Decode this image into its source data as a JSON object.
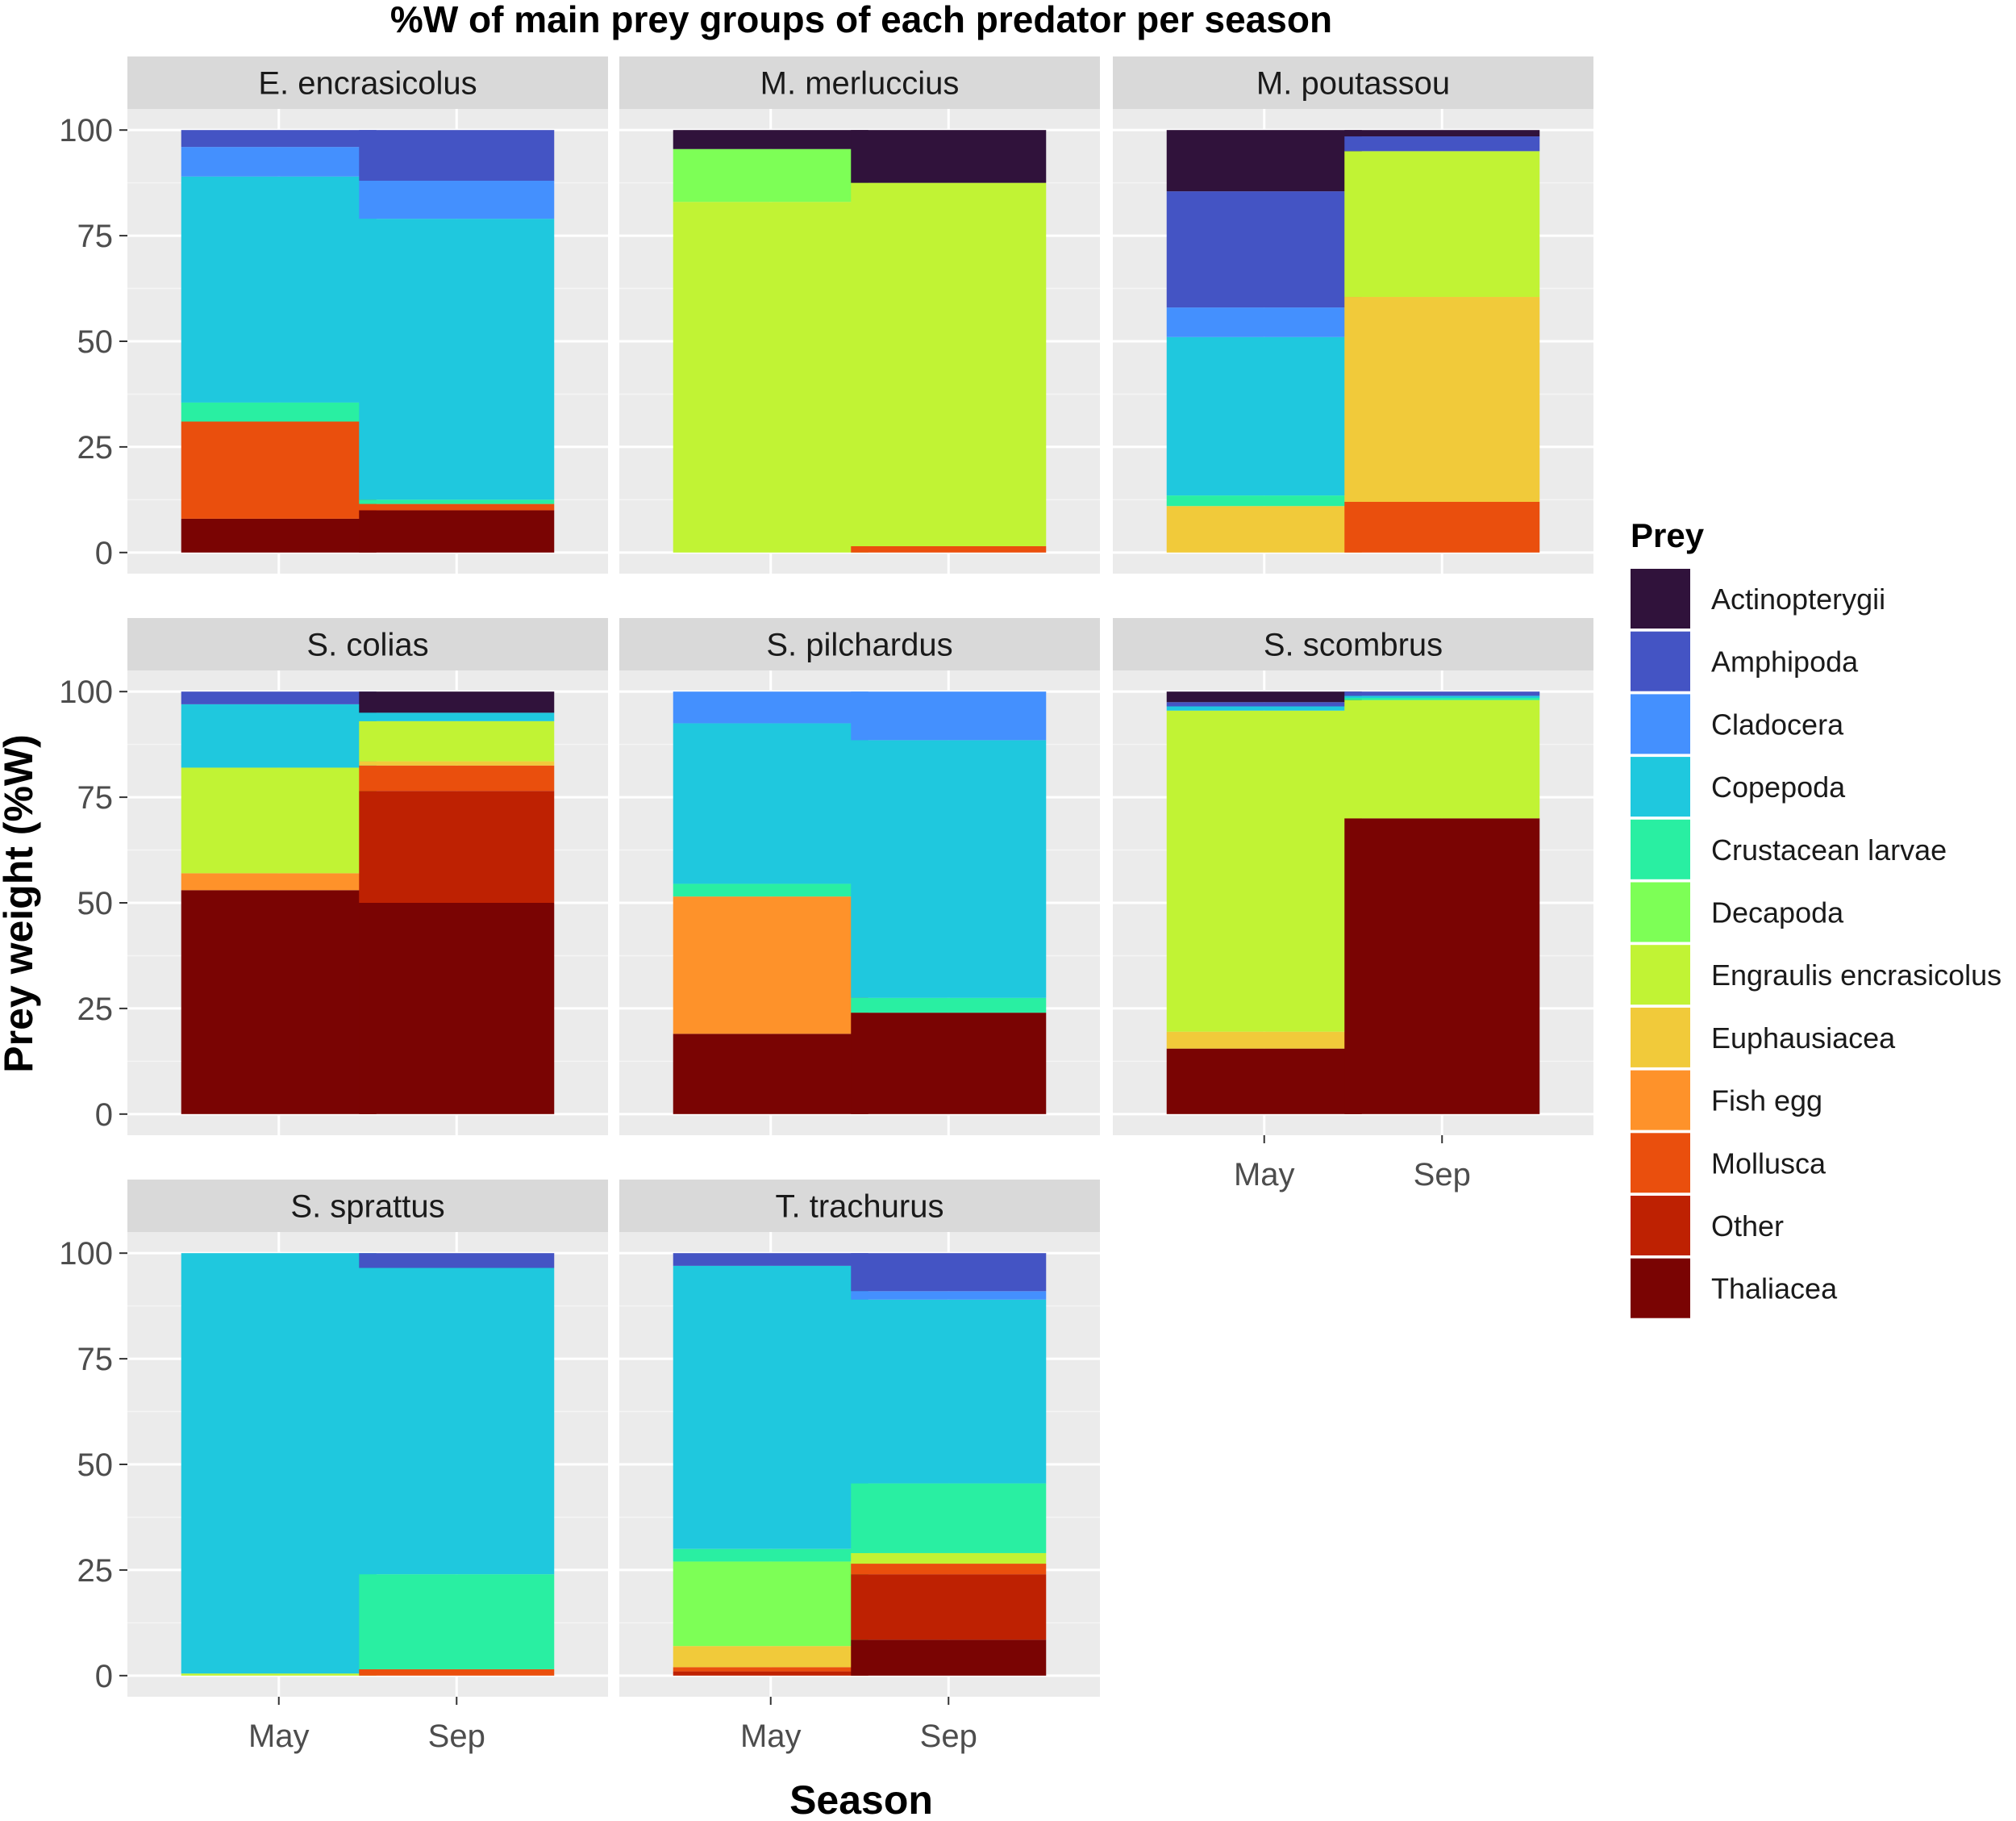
{
  "chart_data": {
    "type": "bar",
    "stacked": true,
    "facet": "wrap",
    "title": "%W of main prey groups of each predator per season",
    "xlabel": "Season",
    "ylabel": "Prey weight (%W)",
    "ylim": [
      0,
      100
    ],
    "yticks": [
      "0",
      "25",
      "50",
      "75",
      "100"
    ],
    "categories": [
      "May",
      "Sep"
    ],
    "legend": {
      "title": "Prey",
      "position": "right",
      "entries": [
        {
          "name": "Actinopterygii",
          "color": "#30123B"
        },
        {
          "name": "Amphipoda",
          "color": "#4454C4"
        },
        {
          "name": "Cladocera",
          "color": "#4490FE"
        },
        {
          "name": "Copepoda",
          "color": "#1FC8DE"
        },
        {
          "name": "Crustacean larvae",
          "color": "#29EFA2"
        },
        {
          "name": "Decapoda",
          "color": "#7DFF56"
        },
        {
          "name": "Engraulis encrasicolus",
          "color": "#C1F334"
        },
        {
          "name": "Euphausiacea",
          "color": "#F1CA3A"
        },
        {
          "name": "Fish egg",
          "color": "#FE922A"
        },
        {
          "name": "Mollusca",
          "color": "#EA4F0D"
        },
        {
          "name": "Other",
          "color": "#BE2102"
        },
        {
          "name": "Thaliacea",
          "color": "#7A0403"
        }
      ]
    },
    "panels": [
      {
        "name": "E. encrasicolus",
        "bars": [
          {
            "season": "May",
            "values": {
              "Thaliacea": 8,
              "Mollusca": 23,
              "Crustacean larvae": 4.5,
              "Copepoda": 53.5,
              "Cladocera": 7,
              "Amphipoda": 4
            }
          },
          {
            "season": "Sep",
            "values": {
              "Thaliacea": 10,
              "Mollusca": 1.5,
              "Crustacean larvae": 1,
              "Copepoda": 66.5,
              "Cladocera": 9,
              "Amphipoda": 12
            }
          }
        ]
      },
      {
        "name": "M. merluccius",
        "bars": [
          {
            "season": "May",
            "values": {
              "Engraulis encrasicolus": 83,
              "Decapoda": 12.5,
              "Actinopterygii": 4.5
            }
          },
          {
            "season": "Sep",
            "values": {
              "Mollusca": 1.5,
              "Engraulis encrasicolus": 86,
              "Actinopterygii": 12.5
            }
          }
        ]
      },
      {
        "name": "M. poutassou",
        "bars": [
          {
            "season": "May",
            "values": {
              "Euphausiacea": 11,
              "Crustacean larvae": 2.5,
              "Copepoda": 37.5,
              "Cladocera": 7,
              "Amphipoda": 27.5,
              "Actinopterygii": 14.5
            }
          },
          {
            "season": "Sep",
            "values": {
              "Mollusca": 12,
              "Euphausiacea": 48.5,
              "Engraulis encrasicolus": 34.5,
              "Amphipoda": 3.5,
              "Actinopterygii": 1.5
            }
          }
        ]
      },
      {
        "name": "S. colias",
        "bars": [
          {
            "season": "May",
            "values": {
              "Thaliacea": 53,
              "Fish egg": 4,
              "Engraulis encrasicolus": 25,
              "Copepoda": 15,
              "Amphipoda": 3
            }
          },
          {
            "season": "Sep",
            "values": {
              "Thaliacea": 50,
              "Other": 26.5,
              "Mollusca": 6,
              "Euphausiacea": 1,
              "Engraulis encrasicolus": 9.5,
              "Copepoda": 2,
              "Actinopterygii": 5
            }
          }
        ]
      },
      {
        "name": "S. pilchardus",
        "bars": [
          {
            "season": "May",
            "values": {
              "Thaliacea": 19,
              "Fish egg": 32.5,
              "Crustacean larvae": 3,
              "Copepoda": 38,
              "Cladocera": 7.5
            }
          },
          {
            "season": "Sep",
            "values": {
              "Thaliacea": 24,
              "Crustacean larvae": 3.5,
              "Copepoda": 61,
              "Cladocera": 11.5
            }
          }
        ]
      },
      {
        "name": "S. scombrus",
        "bars": [
          {
            "season": "May",
            "values": {
              "Thaliacea": 15.5,
              "Euphausiacea": 4,
              "Engraulis encrasicolus": 76,
              "Copepoda": 1,
              "Amphipoda": 1,
              "Actinopterygii": 2.5
            }
          },
          {
            "season": "Sep",
            "values": {
              "Thaliacea": 70,
              "Engraulis encrasicolus": 28,
              "Crustacean larvae": 0.5,
              "Copepoda": 0.5,
              "Amphipoda": 1
            }
          }
        ]
      },
      {
        "name": "S. sprattus",
        "bars": [
          {
            "season": "May",
            "values": {
              "Engraulis encrasicolus": 0.5,
              "Copepoda": 99.5
            }
          },
          {
            "season": "Sep",
            "values": {
              "Mollusca": 1.5,
              "Crustacean larvae": 22.5,
              "Copepoda": 72.5,
              "Amphipoda": 3.5
            }
          }
        ]
      },
      {
        "name": "T. trachurus",
        "bars": [
          {
            "season": "May",
            "values": {
              "Other": 1,
              "Mollusca": 1,
              "Euphausiacea": 5,
              "Decapoda": 20,
              "Crustacean larvae": 3,
              "Copepoda": 67,
              "Amphipoda": 3
            }
          },
          {
            "season": "Sep",
            "values": {
              "Thaliacea": 8.5,
              "Other": 15.5,
              "Mollusca": 2.5,
              "Engraulis encrasicolus": 2.5,
              "Crustacean larvae": 16.5,
              "Copepoda": 43.5,
              "Cladocera": 2,
              "Amphipoda": 9
            }
          }
        ]
      }
    ]
  }
}
